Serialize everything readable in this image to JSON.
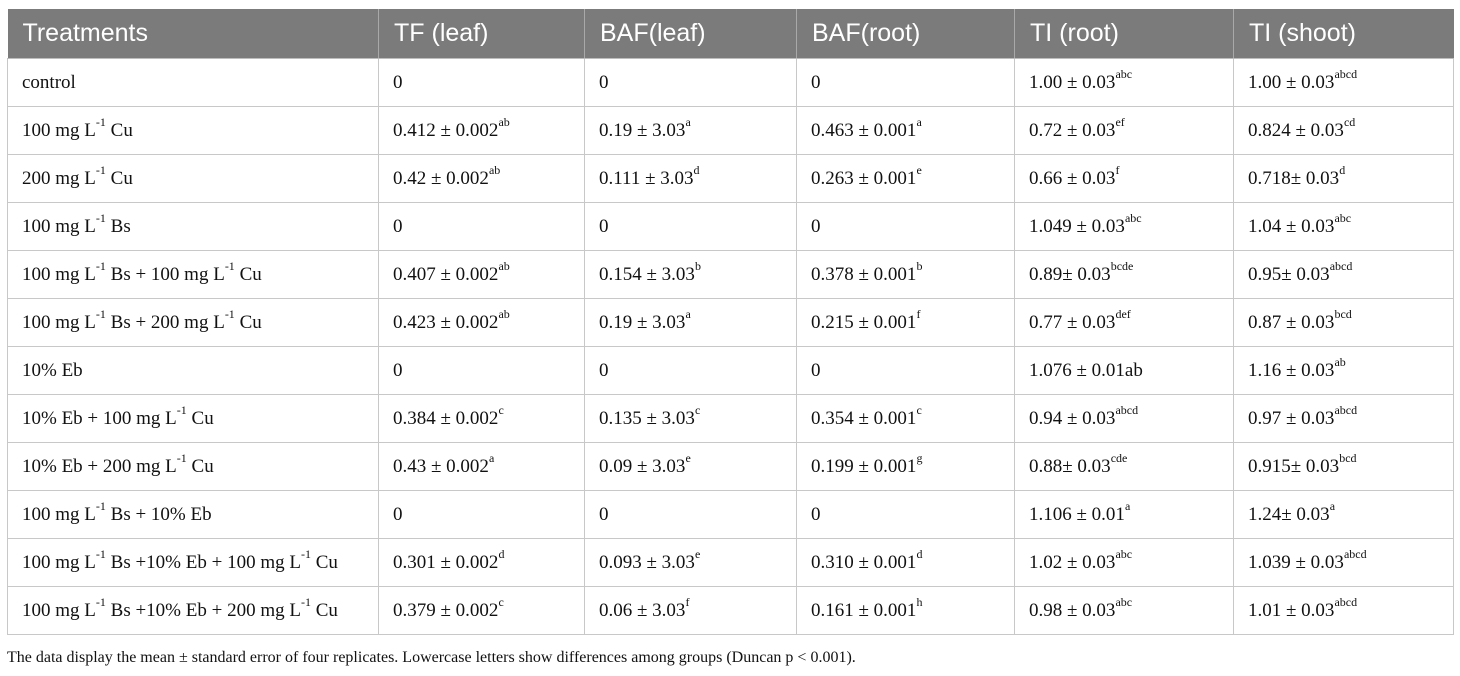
{
  "table": {
    "headers": [
      "Treatments",
      "TF (leaf)",
      "BAF(leaf)",
      "BAF(root)",
      "TI (root)",
      "TI (shoot)"
    ],
    "rows": [
      [
        [
          "control"
        ],
        [
          "0"
        ],
        [
          "0"
        ],
        [
          "0"
        ],
        [
          "1.00 ± 0.03",
          "abc"
        ],
        [
          "1.00 ± 0.03",
          "abcd"
        ]
      ],
      [
        [
          "100 mg L",
          "-1",
          " Cu"
        ],
        [
          "0.412 ± 0.002",
          "ab"
        ],
        [
          "0.19 ± 3.03",
          "a"
        ],
        [
          "0.463 ± 0.001",
          "a"
        ],
        [
          "0.72 ± 0.03",
          "ef"
        ],
        [
          "0.824 ± 0.03",
          "cd"
        ]
      ],
      [
        [
          "200 mg L",
          "-1",
          " Cu"
        ],
        [
          "0.42 ± 0.002",
          "ab"
        ],
        [
          "0.111 ± 3.03",
          "d"
        ],
        [
          "0.263 ± 0.001",
          "e"
        ],
        [
          "0.66 ± 0.03",
          "f"
        ],
        [
          "0.718± 0.03",
          "d"
        ]
      ],
      [
        [
          "100 mg L",
          "-1",
          " Bs"
        ],
        [
          "0"
        ],
        [
          "0"
        ],
        [
          "0"
        ],
        [
          "1.049 ± 0.03",
          "abc"
        ],
        [
          "1.04 ± 0.03",
          "abc"
        ]
      ],
      [
        [
          "100 mg L",
          "-1",
          " Bs + 100 mg L",
          "-1",
          " Cu"
        ],
        [
          "0.407 ± 0.002",
          "ab"
        ],
        [
          "0.154 ± 3.03",
          "b"
        ],
        [
          "0.378 ± 0.001",
          "b"
        ],
        [
          "0.89± 0.03",
          "bcde"
        ],
        [
          "0.95± 0.03",
          "abcd"
        ]
      ],
      [
        [
          "100 mg L",
          "-1",
          " Bs + 200 mg L",
          "-1",
          " Cu"
        ],
        [
          "0.423 ± 0.002",
          "ab"
        ],
        [
          "0.19 ± 3.03",
          "a"
        ],
        [
          "0.215 ± 0.001",
          "f"
        ],
        [
          "0.77 ± 0.03",
          "def"
        ],
        [
          "0.87 ± 0.03",
          "bcd"
        ]
      ],
      [
        [
          "10% Eb"
        ],
        [
          "0"
        ],
        [
          "0"
        ],
        [
          "0"
        ],
        [
          "1.076 ± 0.01ab"
        ],
        [
          "1.16 ± 0.03",
          "ab"
        ]
      ],
      [
        [
          "10% Eb + 100 mg L",
          "-1",
          " Cu"
        ],
        [
          "0.384 ± 0.002",
          "c"
        ],
        [
          "0.135 ± 3.03",
          "c"
        ],
        [
          "0.354 ± 0.001",
          "c"
        ],
        [
          "0.94 ± 0.03",
          "abcd"
        ],
        [
          "0.97 ± 0.03",
          "abcd"
        ]
      ],
      [
        [
          "10% Eb + 200 mg L",
          "-1",
          " Cu"
        ],
        [
          "0.43 ± 0.002",
          "a"
        ],
        [
          "0.09 ± 3.03",
          "e"
        ],
        [
          "0.199 ± 0.001",
          "g"
        ],
        [
          "0.88± 0.03",
          "cde"
        ],
        [
          "0.915± 0.03",
          "bcd"
        ]
      ],
      [
        [
          "100 mg L",
          "-1",
          " Bs + 10% Eb"
        ],
        [
          "0"
        ],
        [
          "0"
        ],
        [
          "0"
        ],
        [
          "1.106 ± 0.01",
          "a"
        ],
        [
          "1.24± 0.03",
          "a"
        ]
      ],
      [
        [
          "100 mg L",
          "-1",
          " Bs +10% Eb + 100 mg L",
          "-1",
          " Cu"
        ],
        [
          "0.301 ± 0.002",
          "d"
        ],
        [
          "0.093 ± 3.03",
          "e"
        ],
        [
          "0.310 ± 0.001",
          "d"
        ],
        [
          "1.02 ± 0.03",
          "abc"
        ],
        [
          "1.039 ± 0.03",
          "abcd"
        ]
      ],
      [
        [
          "100 mg L",
          "-1",
          " Bs +10% Eb + 200 mg L",
          "-1",
          " Cu"
        ],
        [
          "0.379 ± 0.002",
          "c"
        ],
        [
          "0.06 ± 3.03",
          "f"
        ],
        [
          "0.161 ± 0.001",
          "h"
        ],
        [
          "0.98 ± 0.03",
          "abc"
        ],
        [
          "1.01 ± 0.03",
          "abcd"
        ]
      ]
    ]
  },
  "caption": "The data display the mean ± standard error of four replicates. Lowercase letters show differences among groups (Duncan p < 0.001).",
  "colors": {
    "header_bg": "#7b7b7b",
    "header_text": "#ffffff",
    "grid": "#c8c8c8"
  }
}
